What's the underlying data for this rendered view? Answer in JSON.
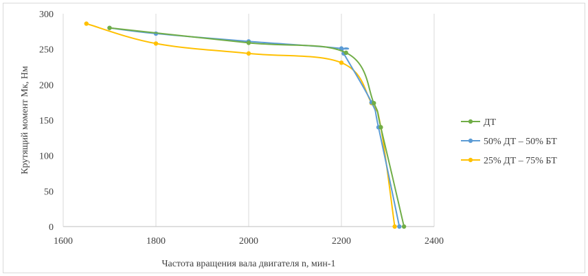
{
  "chart_data": {
    "type": "line",
    "title": "",
    "xlabel": "Частота вращения вала двигателя n, мин-1",
    "ylabel": "Крутящий момент Мк, Нм",
    "xlim": [
      1600,
      2400
    ],
    "ylim": [
      0,
      300
    ],
    "xticks": [
      1600,
      1800,
      2000,
      2200,
      2400
    ],
    "yticks": [
      0,
      50,
      100,
      150,
      200,
      250,
      300
    ],
    "x_tick_labels": [
      "1600",
      "1800",
      "2000",
      "2200",
      "2400"
    ],
    "y_tick_labels": [
      "0",
      "50",
      "100",
      "150",
      "200",
      "250",
      "300"
    ],
    "grid": "vertical",
    "legend_position": "right",
    "series": [
      {
        "name": "ДТ",
        "color": "#70ad47",
        "points": [
          [
            1700,
            280
          ],
          [
            2000,
            259
          ],
          [
            2210,
            245
          ],
          [
            2270,
            174
          ],
          [
            2285,
            140
          ],
          [
            2335,
            0
          ]
        ]
      },
      {
        "name": "50% ДТ – 50% БТ",
        "color": "#5b9bd5",
        "points": [
          [
            1700,
            280
          ],
          [
            1800,
            272
          ],
          [
            2000,
            261
          ],
          [
            2200,
            251
          ],
          [
            2205,
            244
          ],
          [
            2265,
            175
          ],
          [
            2280,
            140
          ],
          [
            2325,
            0
          ]
        ]
      },
      {
        "name": "25% ДТ – 75% БТ",
        "color": "#ffc000",
        "points": [
          [
            1650,
            286
          ],
          [
            1800,
            258
          ],
          [
            2000,
            244
          ],
          [
            2200,
            231
          ],
          [
            2265,
            174
          ],
          [
            2285,
            140
          ],
          [
            2315,
            0
          ]
        ]
      }
    ]
  }
}
